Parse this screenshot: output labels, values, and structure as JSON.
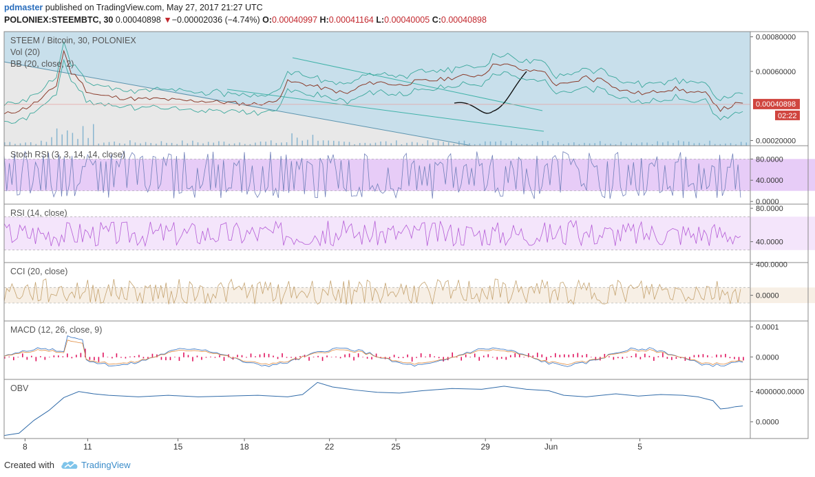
{
  "header": {
    "user": "pdmaster",
    "published": "published on TradingView.com, May 27, 2017 21:27 UTC",
    "symbol": "POLONIEX:STEEMBTC, 30",
    "price": "0.00040898",
    "change_arrow": "▼",
    "change": "−0.00002036 (−4.74%)",
    "o_label": "O:",
    "o_value": "0.00040997",
    "h_label": "H:",
    "h_value": "0.00041164",
    "l_label": "L:",
    "l_value": "0.00040005",
    "c_label": "C:",
    "c_value": "0.00040898"
  },
  "footer": {
    "created_with": "Created with",
    "brand": "TradingView",
    "logo_icon": "tradingview-cloud-icon"
  },
  "colors": {
    "bg_blue": "#c8dfeb",
    "bg_gray": "#e8e8e8",
    "stoch": "#e4c7f6",
    "rsi": "#f3e2fb",
    "cci": "#f6ede2",
    "macd_hist": "#e0125d",
    "obv": "#2f6aa8",
    "price_tag": "#d0453f"
  },
  "chart_data": {
    "type": "line",
    "title": "STEEM / Bitcoin, 30, POLONIEX",
    "xlabel": "",
    "ylabel": "",
    "x_ticks": [
      "8",
      "11",
      "15",
      "18",
      "22",
      "25",
      "29",
      "Jun",
      "5"
    ],
    "current_price_label": "0.00040898",
    "countdown_label": "02:22",
    "panes": [
      {
        "name": "main",
        "labels": [
          "STEEM / Bitcoin, 30, POLONIEX",
          "Vol (20)",
          "BB (20, close, 2)"
        ],
        "y_ticks": [
          "0.00080000",
          "0.00060000",
          "0.00020000"
        ],
        "y_tick_values": [
          0.0008,
          0.0006,
          0.0002
        ],
        "ylim": [
          0.00017,
          0.00083
        ],
        "series": [
          {
            "name": "close",
            "x": [
              0,
              3,
              5,
              7,
              8,
              9,
              10,
              11,
              12,
              13,
              15,
              18,
              21,
              24,
              26,
              30,
              33,
              36,
              37,
              38,
              40,
              43,
              46,
              48,
              50,
              53,
              55,
              58,
              61,
              64,
              66,
              68,
              70,
              72,
              74,
              76,
              78,
              79,
              80,
              81,
              82,
              84,
              86,
              88,
              90,
              92,
              94,
              95,
              96,
              97,
              98,
              99
            ],
            "values": [
              0.00035,
              0.00039,
              0.00044,
              0.00052,
              0.00072,
              0.00059,
              0.00056,
              0.00049,
              0.00047,
              0.00046,
              0.00045,
              0.00044,
              0.00044,
              0.00043,
              0.00043,
              0.00042,
              0.00041,
              0.00042,
              0.00046,
              0.00054,
              0.00053,
              0.0005,
              0.00047,
              0.00052,
              0.00054,
              0.00052,
              0.00054,
              0.00055,
              0.00057,
              0.00058,
              0.00065,
              0.00063,
              0.0006,
              0.00061,
              0.00052,
              0.00053,
              0.00057,
              0.00055,
              0.00056,
              0.00054,
              0.0005,
              0.00048,
              0.00047,
              0.00049,
              0.0005,
              0.00048,
              0.00047,
              0.00043,
              0.00038,
              0.00039,
              0.00041,
              0.00041
            ]
          }
        ]
      },
      {
        "name": "Stoch RSI",
        "labels": [
          "Stoch RSI (3, 3, 14, 14, close)"
        ],
        "y_ticks": [
          "80.0000",
          "40.0000",
          "0.0000"
        ],
        "y_tick_values": [
          80,
          40,
          0
        ],
        "ylim": [
          -5,
          105
        ],
        "band": [
          20,
          80
        ]
      },
      {
        "name": "RSI",
        "labels": [
          "RSI (14, close)"
        ],
        "y_ticks": [
          "80.0000",
          "40.0000"
        ],
        "y_tick_values": [
          80,
          40
        ],
        "ylim": [
          15,
          85
        ],
        "band": [
          30,
          70
        ]
      },
      {
        "name": "CCI",
        "labels": [
          "CCI (20, close)"
        ],
        "y_ticks": [
          "400.0000",
          "0.0000"
        ],
        "y_tick_values": [
          400,
          0
        ],
        "ylim": [
          -330,
          420
        ],
        "band": [
          -100,
          100
        ]
      },
      {
        "name": "MACD",
        "labels": [
          "MACD (12, 26, close, 9)"
        ],
        "y_ticks": [
          "0.0001",
          "0.0000"
        ],
        "y_tick_values": [
          0.0001,
          0
        ],
        "ylim": [
          -7.5e-05,
          0.00012
        ]
      },
      {
        "name": "OBV",
        "labels": [
          "OBV"
        ],
        "y_ticks": [
          "4000000.0000",
          "0.0000"
        ],
        "y_tick_values": [
          4000000,
          0
        ],
        "ylim": [
          -2200000,
          5600000
        ],
        "series": [
          {
            "name": "OBV",
            "x": [
              0,
              2,
              4,
              6,
              8,
              10,
              12,
              14,
              18,
              22,
              26,
              30,
              34,
              38,
              40,
              42,
              44,
              47,
              50,
              53,
              56,
              60,
              64,
              67,
              70,
              73,
              75,
              78,
              82,
              85,
              88,
              91,
              93,
              95,
              96,
              97,
              98,
              99
            ],
            "values": [
              -1800000,
              -1500000,
              200000,
              1500000,
              3200000,
              4000000,
              3700000,
              3500000,
              3300000,
              3500000,
              3300000,
              3400000,
              3500000,
              3300000,
              3600000,
              5200000,
              4600000,
              4200000,
              3900000,
              3800000,
              4100000,
              4400000,
              4300000,
              4700000,
              4300000,
              4100000,
              3500000,
              3300000,
              3700000,
              3400000,
              3600000,
              3500000,
              3300000,
              2800000,
              1700000,
              1800000,
              2000000,
              2100000
            ]
          }
        ]
      }
    ]
  }
}
